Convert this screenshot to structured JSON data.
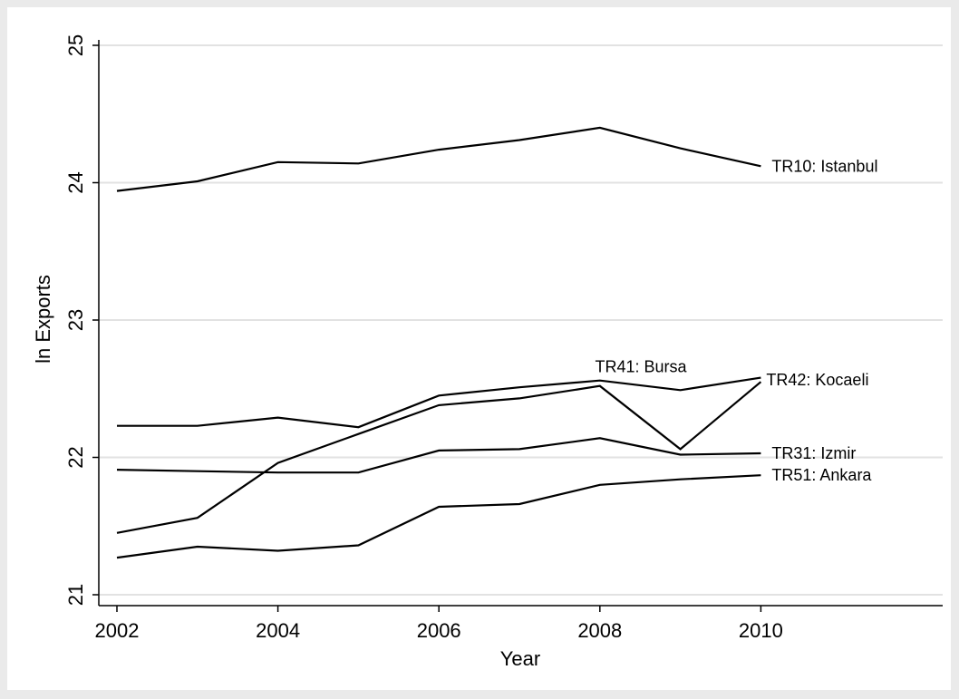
{
  "chart_data": {
    "type": "line",
    "title": "",
    "xlabel": "Year",
    "ylabel": "ln Exports",
    "xlim": [
      2002,
      2012
    ],
    "ylim": [
      21,
      25
    ],
    "xticks": [
      2002,
      2004,
      2006,
      2008,
      2010
    ],
    "yticks": [
      21,
      22,
      23,
      24,
      25
    ],
    "xtick_labels": [
      "2002",
      "2004",
      "2006",
      "2008",
      "2010"
    ],
    "ytick_labels": [
      "21",
      "22",
      "23",
      "24",
      "25"
    ],
    "grid": "horizontal",
    "x": [
      2002,
      2003,
      2004,
      2005,
      2006,
      2007,
      2008,
      2009,
      2010
    ],
    "series": [
      {
        "name": "TR10: Istanbul",
        "values": [
          23.94,
          24.01,
          24.15,
          24.14,
          24.24,
          24.31,
          24.4,
          24.25,
          24.12
        ]
      },
      {
        "name": "TR41: Bursa",
        "values": [
          22.23,
          22.23,
          22.29,
          22.22,
          22.45,
          22.51,
          22.56,
          22.49,
          22.58
        ]
      },
      {
        "name": "TR42: Kocaeli",
        "values": [
          21.45,
          21.56,
          21.96,
          22.17,
          22.38,
          22.43,
          22.52,
          22.06,
          22.55
        ]
      },
      {
        "name": "TR31: Izmir",
        "values": [
          21.91,
          21.9,
          21.89,
          21.89,
          22.05,
          22.06,
          22.14,
          22.02,
          22.03
        ]
      },
      {
        "name": "TR51: Ankara",
        "values": [
          21.27,
          21.35,
          21.32,
          21.36,
          21.64,
          21.66,
          21.8,
          21.84,
          21.87
        ]
      }
    ],
    "label_anchor": [
      "end",
      "mid-top",
      "end-below",
      "end",
      "end"
    ]
  },
  "colors": {
    "background": "#eaeaea",
    "plot_background": "#ffffff",
    "line": "#000000",
    "grid": "#e2e2e2"
  }
}
